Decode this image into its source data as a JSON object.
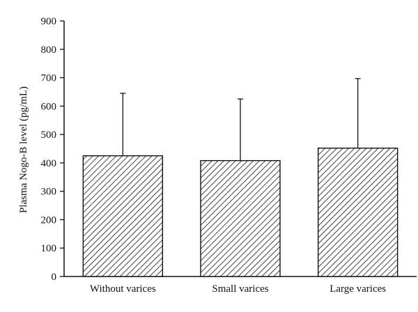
{
  "chart_data": {
    "type": "bar",
    "title": "",
    "xlabel": "",
    "ylabel": "Plasma Nogo-B level (pg/mL)",
    "ylim": [
      0,
      900
    ],
    "yticks": [
      0,
      100,
      200,
      300,
      400,
      500,
      600,
      700,
      800,
      900
    ],
    "categories": [
      "Without varices",
      "Small varices",
      "Large varices"
    ],
    "values": [
      425,
      408,
      452
    ],
    "error_upper": [
      645,
      625,
      697
    ],
    "bar_fill": "hatched",
    "grid": false,
    "legend": "none"
  }
}
